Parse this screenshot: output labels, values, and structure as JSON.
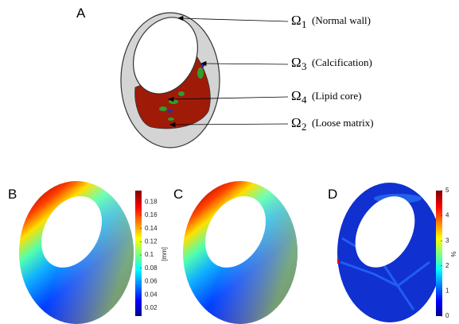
{
  "panels": {
    "a": "A",
    "b": "B",
    "c": "C",
    "d": "D"
  },
  "regions": [
    {
      "symbol": "Ω",
      "subscript": "1",
      "text": "(Normal wall)"
    },
    {
      "symbol": "Ω",
      "subscript": "3",
      "text": "(Calcification)"
    },
    {
      "symbol": "Ω",
      "subscript": "4",
      "text": "(Lipid core)"
    },
    {
      "symbol": "Ω",
      "subscript": "2",
      "text": "(Loose matrix)"
    }
  ],
  "colorbars": [
    {
      "label": "[mm]",
      "lim": [
        0.008,
        0.197
      ],
      "ticks": [
        0.02,
        0.04,
        0.06,
        0.08,
        0.1,
        0.12,
        0.14,
        0.16,
        0.18
      ]
    },
    {
      "label": "%",
      "lim": [
        0,
        5
      ],
      "ticks": [
        0,
        1,
        2,
        3,
        4,
        5
      ]
    }
  ]
}
